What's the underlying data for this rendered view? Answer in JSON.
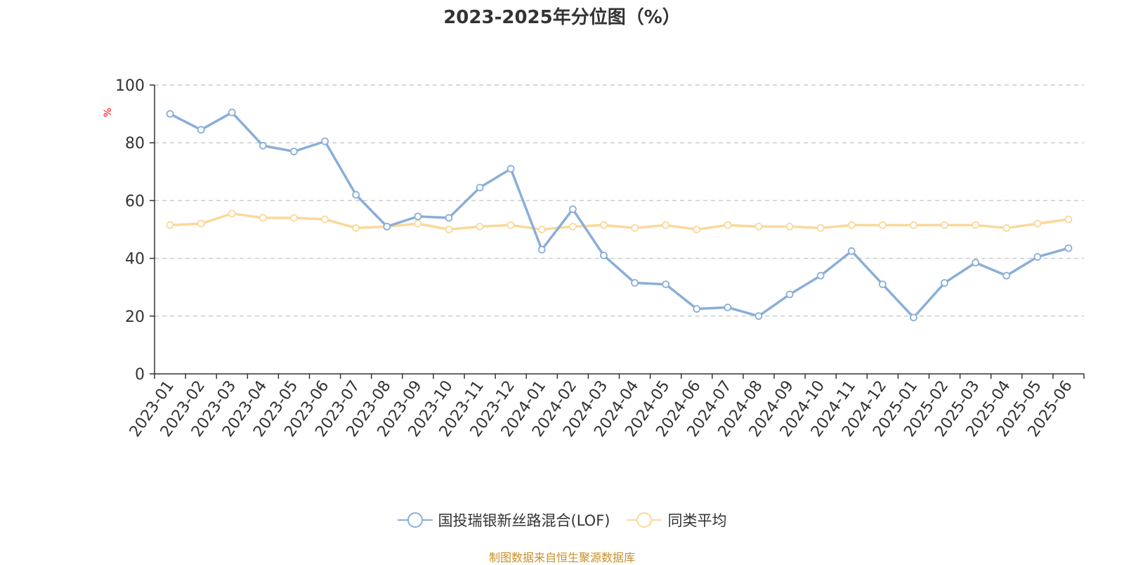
{
  "title": "2023-2025年分位图（%）",
  "source_note": "制图数据来自恒生聚源数据库",
  "colors": {
    "series1": "#8aaed8",
    "series2": "#fbd89a",
    "ylabel": "#ff0000",
    "axis": "#333333",
    "grid": "#cccccc"
  },
  "chart_data": {
    "type": "line",
    "title": "2023-2025年分位图（%）",
    "xlabel": "",
    "ylabel": "%",
    "ylim": [
      0,
      100
    ],
    "yticks": [
      0,
      20,
      40,
      60,
      80,
      100
    ],
    "grid": true,
    "legend_position": "bottom",
    "categories": [
      "2023-01",
      "2023-02",
      "2023-03",
      "2023-04",
      "2023-05",
      "2023-06",
      "2023-07",
      "2023-08",
      "2023-09",
      "2023-10",
      "2023-11",
      "2023-12",
      "2024-01",
      "2024-02",
      "2024-03",
      "2024-04",
      "2024-05",
      "2024-06",
      "2024-07",
      "2024-08",
      "2024-09",
      "2024-10",
      "2024-11",
      "2024-12",
      "2025-01",
      "2025-02",
      "2025-03",
      "2025-04",
      "2025-05",
      "2025-06"
    ],
    "series": [
      {
        "name": "国投瑞银新丝路混合(LOF)",
        "values": [
          90,
          84.5,
          90.5,
          79,
          77,
          80.5,
          62,
          51,
          54.5,
          54,
          64.5,
          71,
          43,
          57,
          41,
          31.5,
          31,
          22.5,
          23,
          20,
          27.5,
          34,
          42.5,
          31,
          19.5,
          31.5,
          38.5,
          34,
          40.5,
          43.5
        ]
      },
      {
        "name": "同类平均",
        "values": [
          51.5,
          52,
          55.5,
          54,
          54,
          53.5,
          50.5,
          51,
          52,
          50,
          51,
          51.5,
          50,
          51,
          51.5,
          50.5,
          51.5,
          50,
          51.5,
          51,
          51,
          50.5,
          51.5,
          51.5,
          51.5,
          51.5,
          51.5,
          50.5,
          52,
          53.5
        ]
      }
    ]
  }
}
